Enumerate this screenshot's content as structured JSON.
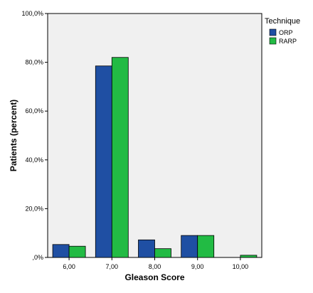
{
  "chart_data": {
    "type": "bar",
    "xlabel": "Gleason Score",
    "ylabel": "Patients (percent)",
    "categories": [
      "6,00",
      "7,00",
      "8,00",
      "9,00",
      "10,00"
    ],
    "series": [
      {
        "name": "ORP",
        "color": "#1f4fa3",
        "values": [
          5.3,
          78.5,
          7.2,
          9.0,
          0.0
        ]
      },
      {
        "name": "RARP",
        "color": "#22bb44",
        "values": [
          4.6,
          82.0,
          3.6,
          9.0,
          0.9
        ]
      }
    ],
    "ylim": [
      0,
      100
    ],
    "yticks": [
      0,
      20,
      40,
      60,
      80,
      100
    ],
    "ytick_labels": [
      ",0%",
      "20,0%",
      "40,0%",
      "60,0%",
      "80,0%",
      "100,0%"
    ],
    "legend_title": "Technique",
    "legend_position": "top-right, outside plot",
    "plot_background": "#f0f0f0",
    "grid": false
  }
}
